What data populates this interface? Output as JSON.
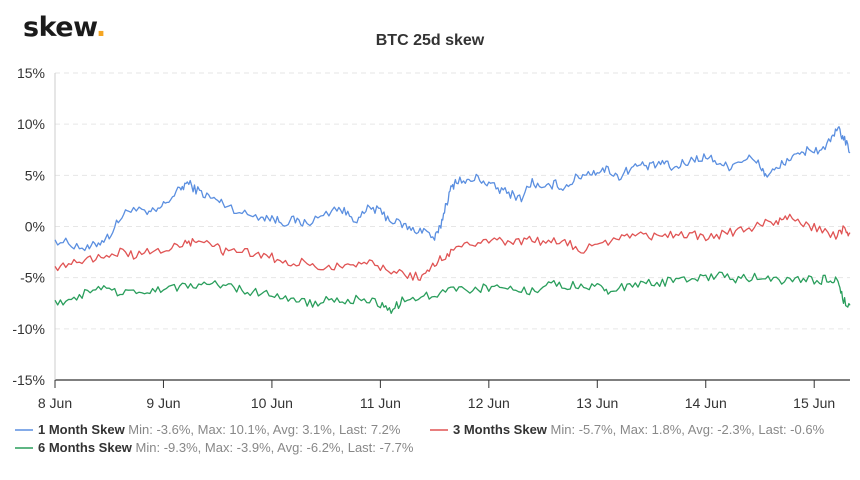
{
  "brand": {
    "name": "skew",
    "dot": ".",
    "accent_color": "#f5a623"
  },
  "chart_data": {
    "type": "line",
    "title": "BTC 25d skew",
    "xlabel": "",
    "ylabel": "",
    "xlim": [
      0,
      7.33
    ],
    "ylim": [
      -15,
      15
    ],
    "grid": true,
    "legend_position": "bottom",
    "x_ticks": [
      {
        "x": 0,
        "label": "8 Jun"
      },
      {
        "x": 1,
        "label": "9 Jun"
      },
      {
        "x": 2,
        "label": "10 Jun"
      },
      {
        "x": 3,
        "label": "11 Jun"
      },
      {
        "x": 4,
        "label": "12 Jun"
      },
      {
        "x": 5,
        "label": "13 Jun"
      },
      {
        "x": 6,
        "label": "14 Jun"
      },
      {
        "x": 7,
        "label": "15 Jun"
      }
    ],
    "y_ticks": [
      {
        "y": 15,
        "label": "15%"
      },
      {
        "y": 10,
        "label": "10%"
      },
      {
        "y": 5,
        "label": "5%"
      },
      {
        "y": 0,
        "label": "0%"
      },
      {
        "y": -5,
        "label": "-5%"
      },
      {
        "y": -10,
        "label": "-10%"
      },
      {
        "y": -15,
        "label": "-15%"
      }
    ],
    "series": [
      {
        "name": "1 Month Skew",
        "color": "#5b8fe0",
        "stats": "Min: -3.6%, Max: 10.1%, Avg: 3.1%, Last: 7.2%",
        "points": [
          [
            0.0,
            -1.3
          ],
          [
            0.15,
            -1.7
          ],
          [
            0.3,
            -2.2
          ],
          [
            0.4,
            -1.6
          ],
          [
            0.5,
            -0.9
          ],
          [
            0.6,
            0.8
          ],
          [
            0.7,
            1.8
          ],
          [
            0.85,
            1.2
          ],
          [
            0.95,
            1.6
          ],
          [
            1.05,
            2.6
          ],
          [
            1.15,
            3.6
          ],
          [
            1.22,
            4.3
          ],
          [
            1.3,
            3.6
          ],
          [
            1.4,
            3.0
          ],
          [
            1.5,
            2.5
          ],
          [
            1.6,
            2.0
          ],
          [
            1.75,
            1.2
          ],
          [
            1.9,
            1.0
          ],
          [
            2.0,
            0.8
          ],
          [
            2.1,
            0.4
          ],
          [
            2.2,
            0.6
          ],
          [
            2.3,
            0.3
          ],
          [
            2.45,
            0.9
          ],
          [
            2.6,
            1.9
          ],
          [
            2.7,
            1.2
          ],
          [
            2.8,
            0.6
          ],
          [
            2.9,
            1.9
          ],
          [
            3.0,
            1.4
          ],
          [
            3.1,
            0.6
          ],
          [
            3.2,
            0.2
          ],
          [
            3.3,
            -0.4
          ],
          [
            3.4,
            -0.3
          ],
          [
            3.5,
            -1.2
          ],
          [
            3.55,
            -0.2
          ],
          [
            3.6,
            2.0
          ],
          [
            3.65,
            3.6
          ],
          [
            3.7,
            4.6
          ],
          [
            3.8,
            4.3
          ],
          [
            3.9,
            4.8
          ],
          [
            4.0,
            4.1
          ],
          [
            4.1,
            3.6
          ],
          [
            4.2,
            3.2
          ],
          [
            4.3,
            2.8
          ],
          [
            4.4,
            4.4
          ],
          [
            4.5,
            3.5
          ],
          [
            4.6,
            4.2
          ],
          [
            4.7,
            3.8
          ],
          [
            4.8,
            4.7
          ],
          [
            4.9,
            5.2
          ],
          [
            5.0,
            5.4
          ],
          [
            5.1,
            5.6
          ],
          [
            5.2,
            4.8
          ],
          [
            5.3,
            5.7
          ],
          [
            5.4,
            6.0
          ],
          [
            5.5,
            5.8
          ],
          [
            5.6,
            6.3
          ],
          [
            5.7,
            5.6
          ],
          [
            5.8,
            6.2
          ],
          [
            5.9,
            6.6
          ],
          [
            6.0,
            6.8
          ],
          [
            6.1,
            6.4
          ],
          [
            6.2,
            5.8
          ],
          [
            6.3,
            6.4
          ],
          [
            6.4,
            6.7
          ],
          [
            6.5,
            6.0
          ],
          [
            6.55,
            5.0
          ],
          [
            6.65,
            5.5
          ],
          [
            6.75,
            6.6
          ],
          [
            6.85,
            6.8
          ],
          [
            6.95,
            7.6
          ],
          [
            7.05,
            7.4
          ],
          [
            7.15,
            8.3
          ],
          [
            7.22,
            9.5
          ],
          [
            7.27,
            8.7
          ],
          [
            7.33,
            7.2
          ]
        ]
      },
      {
        "name": "3 Months Skew",
        "color": "#e05454",
        "stats": "Min: -5.7%, Max: 1.8%, Avg: -2.3%, Last: -0.6%",
        "points": [
          [
            0.0,
            -3.9
          ],
          [
            0.15,
            -3.7
          ],
          [
            0.3,
            -3.3
          ],
          [
            0.45,
            -2.8
          ],
          [
            0.6,
            -2.4
          ],
          [
            0.75,
            -2.9
          ],
          [
            0.9,
            -2.3
          ],
          [
            1.05,
            -2.0
          ],
          [
            1.2,
            -1.6
          ],
          [
            1.3,
            -1.4
          ],
          [
            1.45,
            -1.6
          ],
          [
            1.55,
            -2.4
          ],
          [
            1.7,
            -2.1
          ],
          [
            1.85,
            -2.9
          ],
          [
            2.0,
            -3.0
          ],
          [
            2.15,
            -3.7
          ],
          [
            2.3,
            -3.3
          ],
          [
            2.45,
            -4.6
          ],
          [
            2.6,
            -3.8
          ],
          [
            2.75,
            -3.5
          ],
          [
            2.9,
            -3.7
          ],
          [
            3.05,
            -4.3
          ],
          [
            3.2,
            -4.6
          ],
          [
            3.35,
            -4.9
          ],
          [
            3.45,
            -4.4
          ],
          [
            3.55,
            -3.2
          ],
          [
            3.65,
            -2.6
          ],
          [
            3.8,
            -1.9
          ],
          [
            3.95,
            -1.6
          ],
          [
            4.1,
            -1.4
          ],
          [
            4.25,
            -1.5
          ],
          [
            4.4,
            -1.2
          ],
          [
            4.55,
            -1.6
          ],
          [
            4.7,
            -1.4
          ],
          [
            4.85,
            -2.4
          ],
          [
            5.0,
            -1.9
          ],
          [
            5.15,
            -1.2
          ],
          [
            5.3,
            -0.9
          ],
          [
            5.45,
            -0.8
          ],
          [
            5.6,
            -1.0
          ],
          [
            5.75,
            -0.6
          ],
          [
            5.9,
            -0.8
          ],
          [
            6.05,
            -1.1
          ],
          [
            6.2,
            -0.6
          ],
          [
            6.35,
            -0.4
          ],
          [
            6.5,
            0.2
          ],
          [
            6.65,
            0.4
          ],
          [
            6.75,
            0.9
          ],
          [
            6.9,
            0.2
          ],
          [
            7.05,
            -0.2
          ],
          [
            7.2,
            -0.9
          ],
          [
            7.28,
            -0.2
          ],
          [
            7.33,
            -0.6
          ]
        ]
      },
      {
        "name": "6 Months Skew",
        "color": "#2a9e5c",
        "stats": "Min: -9.3%, Max: -3.9%, Avg: -6.2%, Last: -7.7%",
        "points": [
          [
            0.0,
            -7.2
          ],
          [
            0.15,
            -7.4
          ],
          [
            0.3,
            -6.4
          ],
          [
            0.45,
            -6.1
          ],
          [
            0.6,
            -6.6
          ],
          [
            0.75,
            -6.5
          ],
          [
            0.9,
            -6.1
          ],
          [
            1.05,
            -6.0
          ],
          [
            1.2,
            -5.9
          ],
          [
            1.35,
            -5.6
          ],
          [
            1.5,
            -5.7
          ],
          [
            1.65,
            -6.0
          ],
          [
            1.8,
            -6.3
          ],
          [
            1.95,
            -6.4
          ],
          [
            2.1,
            -6.9
          ],
          [
            2.25,
            -7.2
          ],
          [
            2.4,
            -7.6
          ],
          [
            2.55,
            -7.0
          ],
          [
            2.7,
            -7.3
          ],
          [
            2.85,
            -6.9
          ],
          [
            3.0,
            -7.5
          ],
          [
            3.1,
            -8.3
          ],
          [
            3.2,
            -7.2
          ],
          [
            3.35,
            -6.9
          ],
          [
            3.5,
            -6.6
          ],
          [
            3.65,
            -6.3
          ],
          [
            3.8,
            -6.1
          ],
          [
            3.95,
            -6.0
          ],
          [
            4.1,
            -5.9
          ],
          [
            4.25,
            -6.3
          ],
          [
            4.4,
            -6.2
          ],
          [
            4.55,
            -5.7
          ],
          [
            4.7,
            -5.8
          ],
          [
            4.85,
            -5.6
          ],
          [
            5.0,
            -5.9
          ],
          [
            5.1,
            -6.6
          ],
          [
            5.25,
            -5.9
          ],
          [
            5.4,
            -5.5
          ],
          [
            5.55,
            -5.6
          ],
          [
            5.7,
            -5.3
          ],
          [
            5.85,
            -5.1
          ],
          [
            6.0,
            -5.0
          ],
          [
            6.15,
            -4.8
          ],
          [
            6.3,
            -5.2
          ],
          [
            6.45,
            -4.9
          ],
          [
            6.6,
            -5.0
          ],
          [
            6.75,
            -5.3
          ],
          [
            6.9,
            -5.1
          ],
          [
            7.05,
            -5.3
          ],
          [
            7.15,
            -5.0
          ],
          [
            7.22,
            -5.4
          ],
          [
            7.27,
            -7.1
          ],
          [
            7.33,
            -7.7
          ]
        ]
      }
    ]
  }
}
